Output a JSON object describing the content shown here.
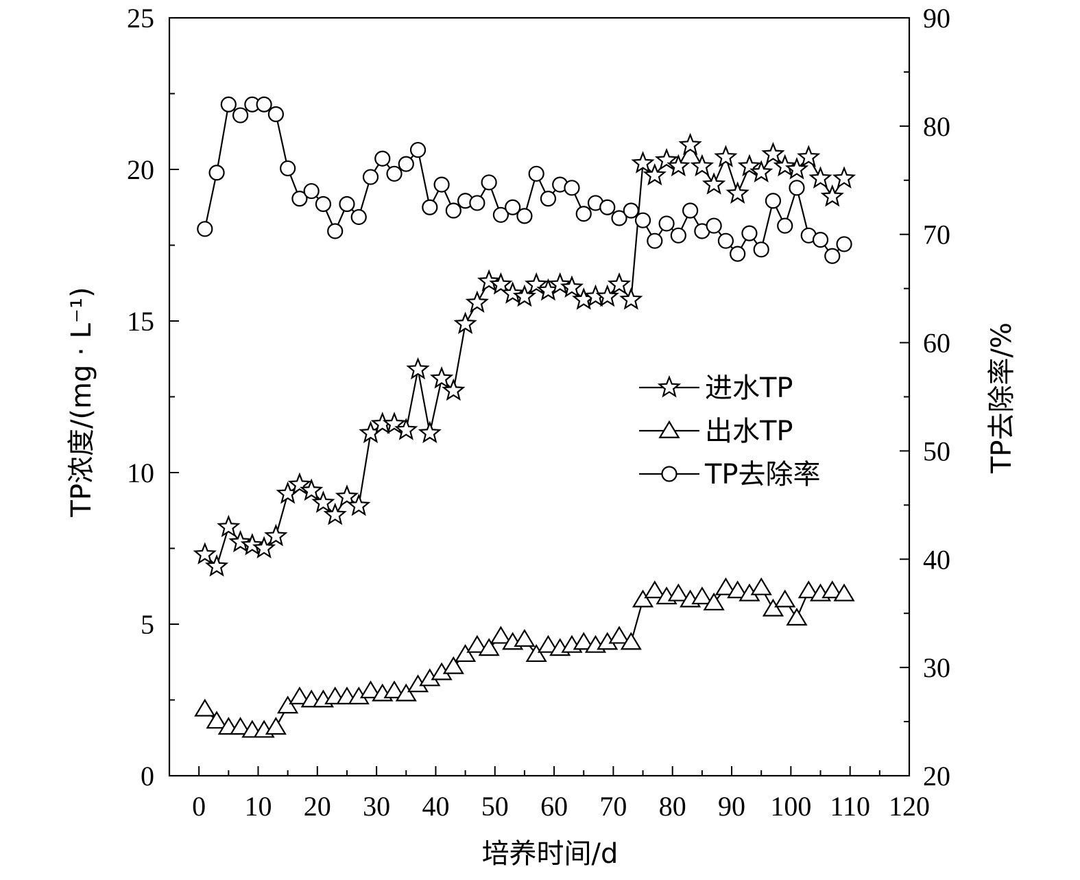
{
  "chart_data": {
    "type": "line",
    "xlabel": "培养时间/d",
    "ylabel_left": "TP浓度/(mg · L⁻¹)",
    "ylabel_right": "TP去除率/%",
    "xlim": [
      -5,
      120
    ],
    "ylim_left": [
      0,
      25
    ],
    "ylim_right": [
      20,
      90
    ],
    "xticks": [
      0,
      10,
      20,
      30,
      40,
      50,
      60,
      70,
      80,
      90,
      100,
      110,
      120
    ],
    "yticks_left": [
      0,
      5,
      10,
      15,
      20,
      25
    ],
    "yticks_right": [
      20,
      30,
      40,
      50,
      60,
      70,
      80,
      90
    ],
    "grid": false,
    "legend_position": "center-right",
    "series": [
      {
        "name": "进水TP",
        "marker": "star",
        "axis": "left",
        "x": [
          1,
          3,
          5,
          7,
          9,
          11,
          13,
          15,
          17,
          19,
          21,
          23,
          25,
          27,
          29,
          31,
          33,
          35,
          37,
          39,
          41,
          43,
          45,
          47,
          49,
          51,
          53,
          55,
          57,
          59,
          61,
          63,
          65,
          67,
          69,
          71,
          73,
          75,
          77,
          79,
          81,
          83,
          85,
          87,
          89,
          91,
          93,
          95,
          97,
          99,
          101,
          103,
          105,
          107,
          109
        ],
        "y": [
          7.3,
          6.9,
          8.2,
          7.7,
          7.6,
          7.5,
          7.9,
          9.3,
          9.6,
          9.4,
          9.0,
          8.6,
          9.2,
          8.9,
          11.3,
          11.6,
          11.6,
          11.4,
          13.4,
          11.3,
          13.1,
          12.7,
          14.9,
          15.6,
          16.3,
          16.2,
          15.9,
          15.8,
          16.2,
          16.0,
          16.2,
          16.1,
          15.7,
          15.8,
          15.8,
          16.2,
          15.7,
          20.2,
          19.8,
          20.3,
          20.1,
          20.8,
          20.1,
          19.5,
          20.4,
          19.2,
          20.1,
          19.9,
          20.5,
          20.1,
          20.0,
          20.4,
          19.7,
          19.1,
          19.7
        ]
      },
      {
        "name": "出水TP",
        "marker": "triangle",
        "axis": "left",
        "x": [
          1,
          3,
          5,
          7,
          9,
          11,
          13,
          15,
          17,
          19,
          21,
          23,
          25,
          27,
          29,
          31,
          33,
          35,
          37,
          39,
          41,
          43,
          45,
          47,
          49,
          51,
          53,
          55,
          57,
          59,
          61,
          63,
          65,
          67,
          69,
          71,
          73,
          75,
          77,
          79,
          81,
          83,
          85,
          87,
          89,
          91,
          93,
          95,
          97,
          99,
          101,
          103,
          105,
          107,
          109
        ],
        "y": [
          2.2,
          1.8,
          1.6,
          1.6,
          1.5,
          1.5,
          1.6,
          2.3,
          2.6,
          2.5,
          2.5,
          2.6,
          2.6,
          2.6,
          2.8,
          2.7,
          2.8,
          2.7,
          3.0,
          3.2,
          3.4,
          3.6,
          4.0,
          4.3,
          4.2,
          4.6,
          4.4,
          4.5,
          4.0,
          4.3,
          4.2,
          4.3,
          4.4,
          4.3,
          4.4,
          4.6,
          4.4,
          5.8,
          6.1,
          5.9,
          6.0,
          5.8,
          5.9,
          5.7,
          6.2,
          6.1,
          6.0,
          6.2,
          5.5,
          5.8,
          5.2,
          6.1,
          6.0,
          6.1,
          6.0
        ]
      },
      {
        "name": "TP去除率",
        "marker": "circle",
        "axis": "right",
        "x": [
          1,
          3,
          5,
          7,
          9,
          11,
          13,
          15,
          17,
          19,
          21,
          23,
          25,
          27,
          29,
          31,
          33,
          35,
          37,
          39,
          41,
          43,
          45,
          47,
          49,
          51,
          53,
          55,
          57,
          59,
          61,
          63,
          65,
          67,
          69,
          71,
          73,
          75,
          77,
          79,
          81,
          83,
          85,
          87,
          89,
          91,
          93,
          95,
          97,
          99,
          101,
          103,
          105,
          107,
          109
        ],
        "y": [
          70.5,
          75.7,
          82.0,
          81.0,
          82.0,
          82.0,
          81.1,
          76.1,
          73.3,
          74.0,
          72.8,
          70.3,
          72.8,
          71.6,
          75.3,
          77.0,
          75.6,
          76.5,
          77.8,
          72.5,
          74.6,
          72.2,
          73.1,
          72.9,
          74.8,
          71.8,
          72.5,
          71.7,
          75.6,
          73.3,
          74.6,
          74.3,
          71.9,
          72.9,
          72.5,
          71.5,
          72.2,
          71.3,
          69.4,
          71.0,
          69.9,
          72.2,
          70.3,
          70.8,
          69.4,
          68.2,
          70.1,
          68.6,
          73.1,
          70.8,
          74.3,
          69.9,
          69.5,
          68.0,
          69.1
        ]
      }
    ]
  }
}
